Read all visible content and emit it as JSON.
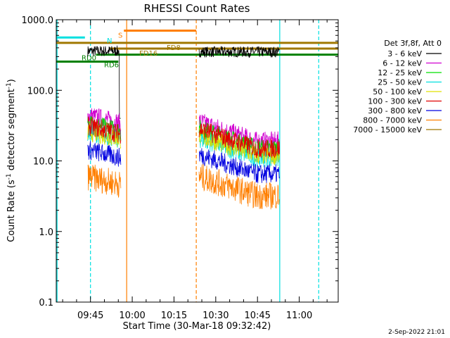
{
  "chart_data": {
    "type": "line",
    "title": "RHESSI Count Rates",
    "xlabel": "Start Time (30-Mar-18 09:32:42)",
    "ylabel_main": "Count Rate (s",
    "ylabel_sup1": "-1",
    "ylabel_mid": " detector segment",
    "ylabel_sup2": "-1",
    "ylabel_end": ")",
    "y_scale": "log",
    "ylim": [
      0.1,
      1000.0
    ],
    "xlim": [
      "09:32:42",
      "11:14:00"
    ],
    "x_ticks": [
      {
        "t": 105,
        "label": "09:45"
      },
      {
        "t": 120,
        "label": "10:00"
      },
      {
        "t": 135,
        "label": "10:15"
      },
      {
        "t": 150,
        "label": "10:30"
      },
      {
        "t": 165,
        "label": "10:45"
      },
      {
        "t": 180,
        "label": "11:00"
      }
    ],
    "y_ticks": [
      {
        "v": 0.1,
        "label": "0.1"
      },
      {
        "v": 1,
        "label": "1.0"
      },
      {
        "v": 10,
        "label": "10.0"
      },
      {
        "v": 100,
        "label": "100.0"
      },
      {
        "v": 1000,
        "label": "1000.0"
      }
    ],
    "legend_header": "Det 3f,8f, Att 0",
    "legend_placement": "right",
    "series": [
      {
        "name": "3 - 6 keV",
        "color": "#000000",
        "level_a": 360,
        "level_b": 350
      },
      {
        "name": "6 - 12 keV",
        "color": "#d000d0",
        "level_a": 34,
        "level_b": 19
      },
      {
        "name": "12 - 25 keV",
        "color": "#00e000",
        "level_a": 26,
        "level_b": 15
      },
      {
        "name": "25 - 50 keV",
        "color": "#00e0e0",
        "level_a": 20,
        "level_b": 11
      },
      {
        "name": "50 - 100 keV",
        "color": "#e0e000",
        "level_a": 20,
        "level_b": 12
      },
      {
        "name": "100 - 300 keV",
        "color": "#e00000",
        "level_a": 24,
        "level_b": 15
      },
      {
        "name": "300 - 800 keV",
        "color": "#0000e0",
        "level_a": 11,
        "level_b": 6.5
      },
      {
        "name": "800 - 7000 keV",
        "color": "#ff7f00",
        "level_a": 4.6,
        "level_b": 3.2
      },
      {
        "name": "7000 - 15000 keV",
        "color": "#a07800",
        "level_a": null,
        "level_b": null
      }
    ],
    "data_segments": [
      [
        "09:44",
        "09:56"
      ],
      [
        "10:24",
        "10:53"
      ]
    ],
    "state_bars": [
      {
        "label": "N",
        "color": "#00e0e0",
        "level": 560,
        "start": "09:32:42",
        "end": "09:43"
      },
      {
        "label": "S",
        "color": "#ff7f00",
        "level": 700,
        "start": "09:57",
        "end": "10:23"
      },
      {
        "label": "FD8",
        "color": "#a07800",
        "level": 470,
        "start": "09:32:42",
        "end": "11:14"
      },
      {
        "label": "FD16",
        "color": "#a07800",
        "level": 390,
        "start": "09:52",
        "end": "11:14"
      },
      {
        "label": "RD0",
        "color": "#008000",
        "level": 320,
        "start": "09:47",
        "end": "11:14"
      },
      {
        "label": "RD6",
        "color": "#008000",
        "level": 255,
        "start": "09:32:42",
        "end": "09:55"
      }
    ],
    "vertical_markers": [
      {
        "time": "09:33",
        "color": "#00e0e0",
        "style": "solid"
      },
      {
        "time": "09:45",
        "color": "#00e0e0",
        "style": "dashed"
      },
      {
        "time": "09:58",
        "color": "#ff7f00",
        "style": "solid"
      },
      {
        "time": "10:23",
        "color": "#ff7f00",
        "style": "dashed"
      },
      {
        "time": "10:53",
        "color": "#00e0e0",
        "style": "solid"
      },
      {
        "time": "11:07",
        "color": "#00e0e0",
        "style": "dashed"
      }
    ],
    "grid": false
  },
  "footer": {
    "date": "2-Sep-2022 21:01"
  }
}
